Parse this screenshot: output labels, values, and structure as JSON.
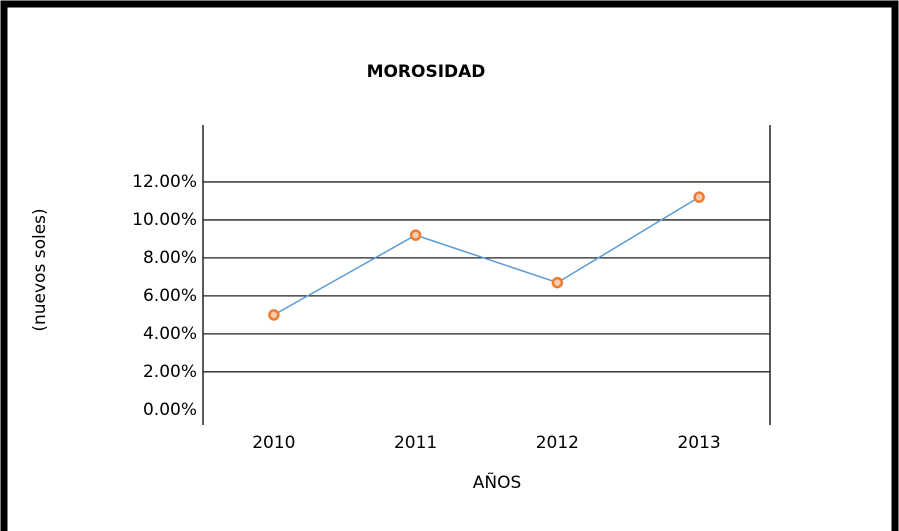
{
  "chart_data": {
    "type": "line",
    "title": "MOROSIDAD",
    "x_label": "AÑOS",
    "y_label": "(nuevos soles)",
    "categories": [
      "2010",
      "2011",
      "2012",
      "2013"
    ],
    "series": [
      {
        "name": "Morosidad",
        "color": "#5b9bd5",
        "marker_color": "#ed7d31",
        "values": [
          5.0,
          9.2,
          6.7,
          11.2
        ]
      }
    ],
    "ylim": [
      -0.8,
      15
    ],
    "yticks": [
      {
        "value": 0,
        "label": "0.00%"
      },
      {
        "value": 2,
        "label": "2.00%"
      },
      {
        "value": 4,
        "label": "4.00%"
      },
      {
        "value": 6,
        "label": "6.00%"
      },
      {
        "value": 8,
        "label": "8.00%"
      },
      {
        "value": 10,
        "label": "10.00%"
      },
      {
        "value": 12,
        "label": "12.00%"
      }
    ],
    "grid": true,
    "legend": false
  }
}
